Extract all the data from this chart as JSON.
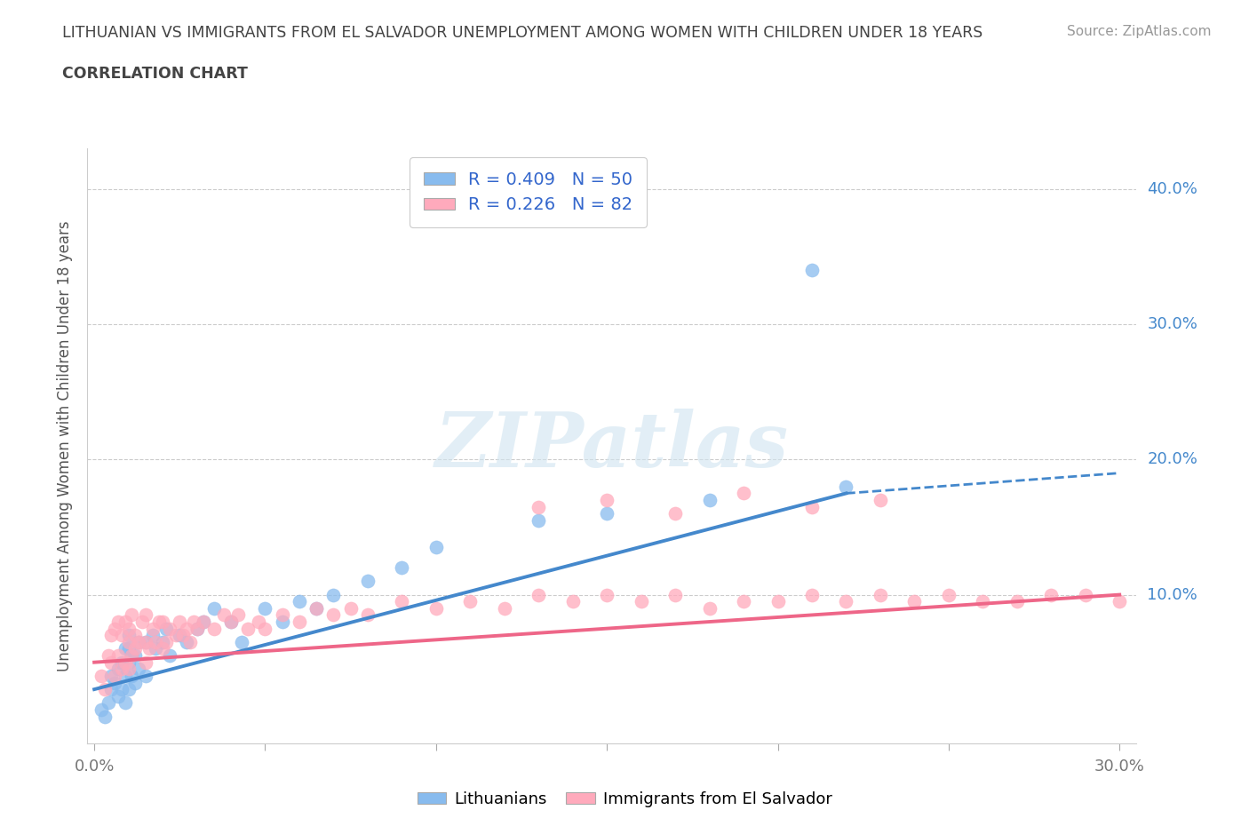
{
  "title_line1": "LITHUANIAN VS IMMIGRANTS FROM EL SALVADOR UNEMPLOYMENT AMONG WOMEN WITH CHILDREN UNDER 18 YEARS",
  "title_line2": "CORRELATION CHART",
  "source_text": "Source: ZipAtlas.com",
  "ylabel": "Unemployment Among Women with Children Under 18 years",
  "xlim": [
    -0.002,
    0.305
  ],
  "ylim": [
    -0.01,
    0.43
  ],
  "xticks": [
    0.0,
    0.05,
    0.1,
    0.15,
    0.2,
    0.25,
    0.3
  ],
  "yticks": [
    0.0,
    0.1,
    0.2,
    0.3,
    0.4
  ],
  "color_blue": "#88BBEE",
  "color_pink": "#FFAABC",
  "color_blue_line": "#4488CC",
  "color_pink_line": "#EE6688",
  "R_blue": 0.409,
  "N_blue": 50,
  "R_pink": 0.226,
  "N_pink": 82,
  "watermark": "ZIPatlas",
  "background_color": "#FFFFFF",
  "grid_color": "#CCCCCC",
  "title_color": "#444444",
  "ytick_color": "#4488CC",
  "xtick_color": "#777777",
  "blue_scatter_x": [
    0.002,
    0.003,
    0.004,
    0.005,
    0.005,
    0.006,
    0.007,
    0.007,
    0.008,
    0.008,
    0.009,
    0.009,
    0.009,
    0.01,
    0.01,
    0.01,
    0.01,
    0.011,
    0.011,
    0.012,
    0.012,
    0.013,
    0.013,
    0.015,
    0.015,
    0.017,
    0.018,
    0.02,
    0.021,
    0.022,
    0.025,
    0.027,
    0.03,
    0.032,
    0.035,
    0.04,
    0.043,
    0.05,
    0.055,
    0.06,
    0.065,
    0.07,
    0.08,
    0.09,
    0.1,
    0.13,
    0.15,
    0.18,
    0.22,
    0.21
  ],
  "blue_scatter_y": [
    0.015,
    0.01,
    0.02,
    0.03,
    0.04,
    0.035,
    0.025,
    0.045,
    0.03,
    0.05,
    0.02,
    0.04,
    0.06,
    0.03,
    0.05,
    0.06,
    0.07,
    0.04,
    0.055,
    0.035,
    0.055,
    0.045,
    0.065,
    0.04,
    0.065,
    0.07,
    0.06,
    0.065,
    0.075,
    0.055,
    0.07,
    0.065,
    0.075,
    0.08,
    0.09,
    0.08,
    0.065,
    0.09,
    0.08,
    0.095,
    0.09,
    0.1,
    0.11,
    0.12,
    0.135,
    0.155,
    0.16,
    0.17,
    0.18,
    0.34
  ],
  "pink_scatter_x": [
    0.002,
    0.003,
    0.004,
    0.005,
    0.005,
    0.006,
    0.006,
    0.007,
    0.007,
    0.008,
    0.008,
    0.009,
    0.009,
    0.01,
    0.01,
    0.01,
    0.011,
    0.011,
    0.012,
    0.012,
    0.013,
    0.014,
    0.015,
    0.015,
    0.015,
    0.016,
    0.017,
    0.018,
    0.019,
    0.02,
    0.02,
    0.021,
    0.022,
    0.024,
    0.025,
    0.026,
    0.027,
    0.028,
    0.029,
    0.03,
    0.032,
    0.035,
    0.038,
    0.04,
    0.042,
    0.045,
    0.048,
    0.05,
    0.055,
    0.06,
    0.065,
    0.07,
    0.075,
    0.08,
    0.09,
    0.1,
    0.11,
    0.12,
    0.13,
    0.14,
    0.15,
    0.16,
    0.17,
    0.18,
    0.19,
    0.2,
    0.21,
    0.22,
    0.23,
    0.24,
    0.25,
    0.26,
    0.27,
    0.28,
    0.29,
    0.3,
    0.13,
    0.15,
    0.17,
    0.19,
    0.21,
    0.23
  ],
  "pink_scatter_y": [
    0.04,
    0.03,
    0.055,
    0.05,
    0.07,
    0.04,
    0.075,
    0.055,
    0.08,
    0.045,
    0.07,
    0.05,
    0.08,
    0.045,
    0.065,
    0.075,
    0.055,
    0.085,
    0.06,
    0.07,
    0.065,
    0.08,
    0.05,
    0.065,
    0.085,
    0.06,
    0.075,
    0.065,
    0.08,
    0.06,
    0.08,
    0.065,
    0.075,
    0.07,
    0.08,
    0.07,
    0.075,
    0.065,
    0.08,
    0.075,
    0.08,
    0.075,
    0.085,
    0.08,
    0.085,
    0.075,
    0.08,
    0.075,
    0.085,
    0.08,
    0.09,
    0.085,
    0.09,
    0.085,
    0.095,
    0.09,
    0.095,
    0.09,
    0.1,
    0.095,
    0.1,
    0.095,
    0.1,
    0.09,
    0.095,
    0.095,
    0.1,
    0.095,
    0.1,
    0.095,
    0.1,
    0.095,
    0.095,
    0.1,
    0.1,
    0.095,
    0.165,
    0.17,
    0.16,
    0.175,
    0.165,
    0.17
  ],
  "blue_trendline_x0": 0.0,
  "blue_trendline_y0": 0.03,
  "blue_trendline_x1": 0.22,
  "blue_trendline_y1": 0.175,
  "blue_trendline_x2": 0.3,
  "blue_trendline_y2": 0.19,
  "pink_trendline_x0": 0.0,
  "pink_trendline_y0": 0.05,
  "pink_trendline_x1": 0.3,
  "pink_trendline_y1": 0.1
}
